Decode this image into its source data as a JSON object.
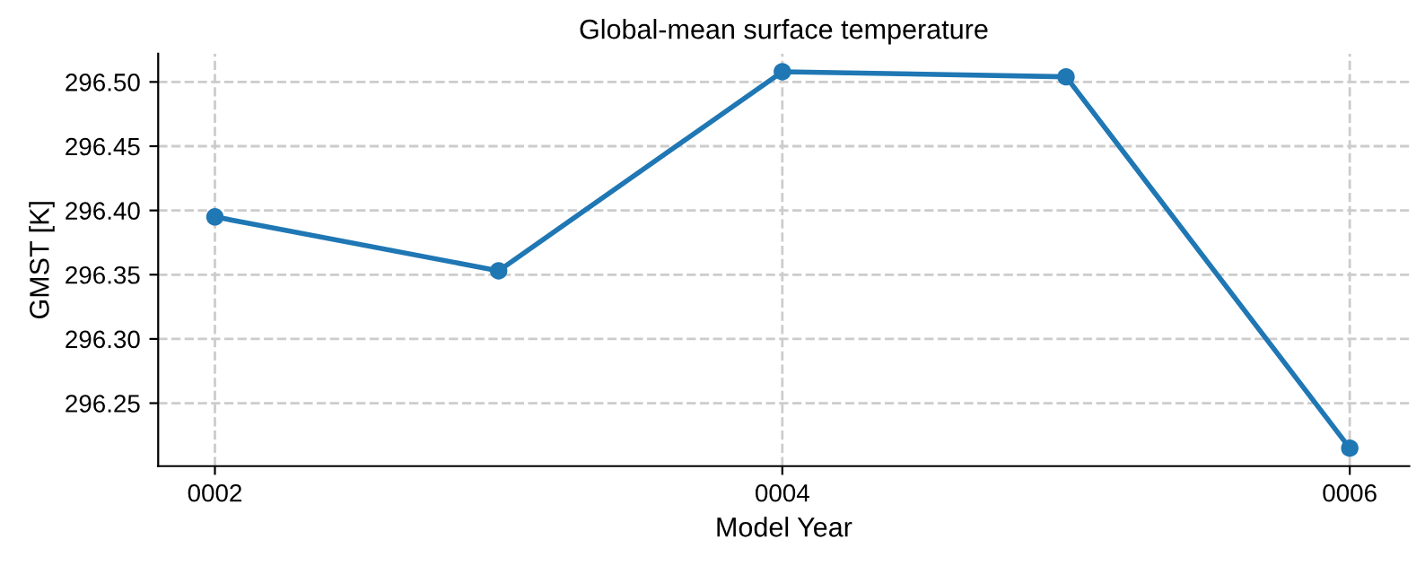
{
  "chart_data": {
    "type": "line",
    "title": "Global-mean surface temperature",
    "xlabel": "Model Year",
    "ylabel": "GMST [K]",
    "x": [
      2,
      3,
      4,
      5,
      6
    ],
    "series": [
      {
        "color": "#1f77b4",
        "values": [
          296.395,
          296.353,
          296.508,
          296.504,
          296.215
        ]
      }
    ],
    "xlim": [
      1.8,
      6.21
    ],
    "ylim": [
      296.201,
      296.522
    ],
    "xticks": [
      {
        "value": 2,
        "label": "0002"
      },
      {
        "value": 4,
        "label": "0004"
      },
      {
        "value": 6,
        "label": "0006"
      }
    ],
    "yticks": [
      {
        "value": 296.25,
        "label": "296.25"
      },
      {
        "value": 296.3,
        "label": "296.30"
      },
      {
        "value": 296.35,
        "label": "296.35"
      },
      {
        "value": 296.4,
        "label": "296.40"
      },
      {
        "value": 296.45,
        "label": "296.45"
      },
      {
        "value": 296.5,
        "label": "296.50"
      }
    ],
    "grid": true,
    "marker": "circle",
    "line_style": "solid"
  }
}
